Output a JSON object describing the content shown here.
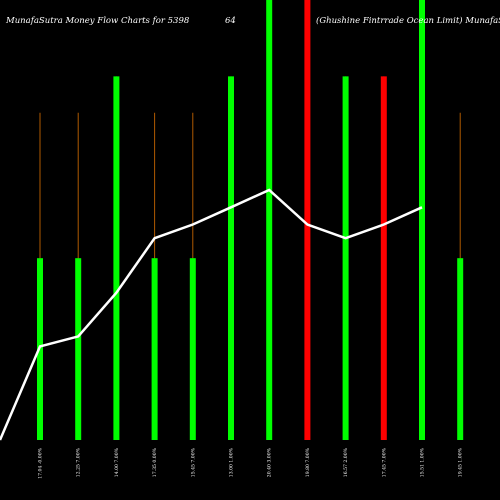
{
  "chart_data": {
    "type": "bar",
    "title_left": "MunafaSutra  Money Flow  Charts for 5398",
    "title_mid": "64",
    "title_right": "(Ghushine   Fintrrade   Ocean   Limit) MunafaSutra.com",
    "categories": [
      "17.04 -0.00%",
      "12.25 7.00%",
      "14.00 7.00%",
      "17.35 0.00%",
      "15.45 7.00%",
      "13.00 1.00%",
      "20.40 3.00%",
      "19.80 7.00%",
      "16.57 2.00%",
      "17.45 7.00%",
      "15.51 1.00%",
      "19.45 1.00%"
    ],
    "bar_values": [
      2,
      2,
      4,
      2,
      2,
      4,
      5,
      5,
      4,
      4,
      5,
      2
    ],
    "bar_colors": [
      "green",
      "green",
      "green",
      "green",
      "green",
      "green",
      "green",
      "red",
      "green",
      "red",
      "green",
      "green"
    ],
    "wick_values": [
      3.6,
      3.6,
      4,
      3.6,
      3.6,
      4,
      5,
      5,
      4,
      4,
      5,
      3.6
    ],
    "line_values": [
      0,
      1.03,
      1.14,
      1.62,
      2.22,
      2.37,
      2.56,
      2.75,
      2.37,
      2.22,
      2.37,
      2.56
    ],
    "ylim": [
      0,
      4.4
    ],
    "colors": {
      "background": "#000000",
      "green": "#00ff00",
      "red": "#ff0000",
      "wick": "#b05a00",
      "line": "#ffffff"
    }
  }
}
